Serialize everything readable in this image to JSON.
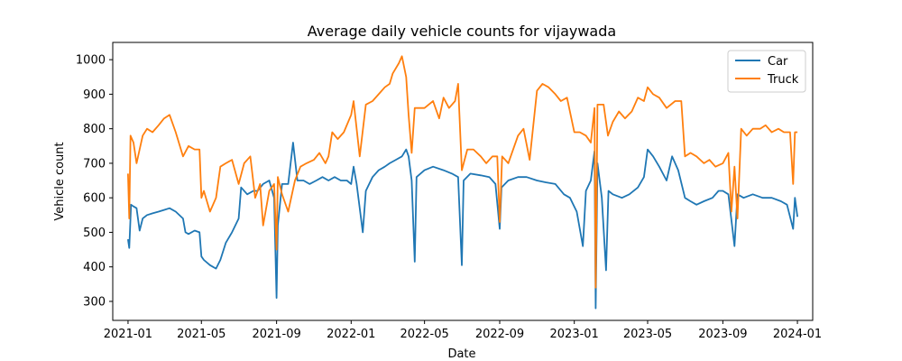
{
  "chart_data": {
    "type": "line",
    "title": "Average daily vehicle counts for vijaywada",
    "xlabel": "Date",
    "ylabel": "Vehicle count",
    "x_type": "date",
    "xlim": [
      "2020-12-07",
      "2024-01-26"
    ],
    "ylim": [
      245,
      1050
    ],
    "xticks": [
      "2021-01-01",
      "2021-05-01",
      "2021-09-01",
      "2022-01-01",
      "2022-05-01",
      "2022-09-01",
      "2023-01-01",
      "2023-05-01",
      "2023-09-01",
      "2024-01-01"
    ],
    "xtick_labels": [
      "2021-01",
      "2021-05",
      "2021-09",
      "2022-01",
      "2022-05",
      "2022-09",
      "2023-01",
      "2023-05",
      "2023-09",
      "2024-01"
    ],
    "yticks": [
      300,
      400,
      500,
      600,
      700,
      800,
      900,
      1000
    ],
    "grid": false,
    "legend_position": "top-right",
    "series": [
      {
        "name": "Car",
        "color": "#1f77b4",
        "points": [
          [
            "2021-01-01",
            480
          ],
          [
            "2021-01-03",
            455
          ],
          [
            "2021-01-06",
            580
          ],
          [
            "2021-01-10",
            575
          ],
          [
            "2021-01-15",
            570
          ],
          [
            "2021-01-20",
            505
          ],
          [
            "2021-01-25",
            540
          ],
          [
            "2021-02-01",
            550
          ],
          [
            "2021-02-10",
            555
          ],
          [
            "2021-02-20",
            560
          ],
          [
            "2021-03-01",
            565
          ],
          [
            "2021-03-10",
            570
          ],
          [
            "2021-03-20",
            560
          ],
          [
            "2021-04-01",
            540
          ],
          [
            "2021-04-05",
            500
          ],
          [
            "2021-04-10",
            495
          ],
          [
            "2021-04-20",
            505
          ],
          [
            "2021-04-28",
            500
          ],
          [
            "2021-05-01",
            430
          ],
          [
            "2021-05-05",
            420
          ],
          [
            "2021-05-15",
            405
          ],
          [
            "2021-05-20",
            400
          ],
          [
            "2021-05-25",
            395
          ],
          [
            "2021-06-01",
            420
          ],
          [
            "2021-06-10",
            470
          ],
          [
            "2021-06-20",
            500
          ],
          [
            "2021-07-01",
            540
          ],
          [
            "2021-07-05",
            630
          ],
          [
            "2021-07-15",
            610
          ],
          [
            "2021-07-25",
            620
          ],
          [
            "2021-08-01",
            620
          ],
          [
            "2021-08-10",
            640
          ],
          [
            "2021-08-20",
            650
          ],
          [
            "2021-08-28",
            600
          ],
          [
            "2021-09-01",
            310
          ],
          [
            "2021-09-03",
            520
          ],
          [
            "2021-09-10",
            640
          ],
          [
            "2021-09-20",
            640
          ],
          [
            "2021-09-28",
            760
          ],
          [
            "2021-10-05",
            650
          ],
          [
            "2021-10-15",
            650
          ],
          [
            "2021-10-25",
            640
          ],
          [
            "2021-11-05",
            650
          ],
          [
            "2021-11-15",
            660
          ],
          [
            "2021-11-25",
            650
          ],
          [
            "2021-12-05",
            660
          ],
          [
            "2021-12-15",
            650
          ],
          [
            "2021-12-25",
            650
          ],
          [
            "2022-01-01",
            640
          ],
          [
            "2022-01-05",
            690
          ],
          [
            "2022-01-10",
            640
          ],
          [
            "2022-01-20",
            500
          ],
          [
            "2022-01-25",
            620
          ],
          [
            "2022-02-05",
            660
          ],
          [
            "2022-02-15",
            680
          ],
          [
            "2022-02-25",
            690
          ],
          [
            "2022-03-05",
            700
          ],
          [
            "2022-03-15",
            710
          ],
          [
            "2022-03-25",
            720
          ],
          [
            "2022-04-01",
            740
          ],
          [
            "2022-04-05",
            720
          ],
          [
            "2022-04-10",
            650
          ],
          [
            "2022-04-15",
            415
          ],
          [
            "2022-04-18",
            660
          ],
          [
            "2022-05-01",
            680
          ],
          [
            "2022-05-15",
            690
          ],
          [
            "2022-06-01",
            680
          ],
          [
            "2022-06-15",
            670
          ],
          [
            "2022-06-25",
            660
          ],
          [
            "2022-07-01",
            405
          ],
          [
            "2022-07-04",
            650
          ],
          [
            "2022-07-15",
            670
          ],
          [
            "2022-08-01",
            665
          ],
          [
            "2022-08-15",
            660
          ],
          [
            "2022-08-25",
            640
          ],
          [
            "2022-09-01",
            510
          ],
          [
            "2022-09-04",
            630
          ],
          [
            "2022-09-15",
            650
          ],
          [
            "2022-10-01",
            660
          ],
          [
            "2022-10-15",
            660
          ],
          [
            "2022-11-01",
            650
          ],
          [
            "2022-11-15",
            645
          ],
          [
            "2022-12-01",
            640
          ],
          [
            "2022-12-15",
            610
          ],
          [
            "2022-12-25",
            600
          ],
          [
            "2023-01-05",
            560
          ],
          [
            "2023-01-15",
            460
          ],
          [
            "2023-01-20",
            620
          ],
          [
            "2023-01-28",
            650
          ],
          [
            "2023-02-03",
            735
          ],
          [
            "2023-02-05",
            280
          ],
          [
            "2023-02-08",
            700
          ],
          [
            "2023-02-15",
            600
          ],
          [
            "2023-02-22",
            390
          ],
          [
            "2023-02-26",
            620
          ],
          [
            "2023-03-05",
            610
          ],
          [
            "2023-03-20",
            600
          ],
          [
            "2023-04-01",
            610
          ],
          [
            "2023-04-15",
            630
          ],
          [
            "2023-04-25",
            660
          ],
          [
            "2023-05-01",
            740
          ],
          [
            "2023-05-10",
            720
          ],
          [
            "2023-05-20",
            690
          ],
          [
            "2023-06-01",
            650
          ],
          [
            "2023-06-10",
            720
          ],
          [
            "2023-06-20",
            680
          ],
          [
            "2023-07-01",
            600
          ],
          [
            "2023-07-10",
            590
          ],
          [
            "2023-07-20",
            580
          ],
          [
            "2023-08-01",
            590
          ],
          [
            "2023-08-15",
            600
          ],
          [
            "2023-08-25",
            620
          ],
          [
            "2023-09-01",
            620
          ],
          [
            "2023-09-10",
            610
          ],
          [
            "2023-09-20",
            460
          ],
          [
            "2023-09-25",
            610
          ],
          [
            "2023-10-05",
            600
          ],
          [
            "2023-10-20",
            610
          ],
          [
            "2023-11-05",
            600
          ],
          [
            "2023-11-20",
            600
          ],
          [
            "2023-12-05",
            590
          ],
          [
            "2023-12-15",
            580
          ],
          [
            "2023-12-25",
            510
          ],
          [
            "2023-12-28",
            600
          ],
          [
            "2024-01-01",
            545
          ]
        ]
      },
      {
        "name": "Truck",
        "color": "#ff7f0e",
        "points": [
          [
            "2021-01-01",
            670
          ],
          [
            "2021-01-03",
            540
          ],
          [
            "2021-01-05",
            780
          ],
          [
            "2021-01-10",
            760
          ],
          [
            "2021-01-15",
            700
          ],
          [
            "2021-01-20",
            740
          ],
          [
            "2021-01-25",
            780
          ],
          [
            "2021-02-01",
            800
          ],
          [
            "2021-02-10",
            790
          ],
          [
            "2021-02-20",
            810
          ],
          [
            "2021-03-01",
            830
          ],
          [
            "2021-03-10",
            840
          ],
          [
            "2021-03-20",
            790
          ],
          [
            "2021-04-01",
            720
          ],
          [
            "2021-04-10",
            750
          ],
          [
            "2021-04-20",
            740
          ],
          [
            "2021-04-28",
            740
          ],
          [
            "2021-05-01",
            600
          ],
          [
            "2021-05-05",
            620
          ],
          [
            "2021-05-15",
            560
          ],
          [
            "2021-05-25",
            600
          ],
          [
            "2021-06-01",
            690
          ],
          [
            "2021-06-10",
            700
          ],
          [
            "2021-06-20",
            710
          ],
          [
            "2021-07-01",
            640
          ],
          [
            "2021-07-10",
            700
          ],
          [
            "2021-07-20",
            720
          ],
          [
            "2021-07-28",
            600
          ],
          [
            "2021-08-05",
            640
          ],
          [
            "2021-08-10",
            520
          ],
          [
            "2021-08-20",
            620
          ],
          [
            "2021-08-28",
            640
          ],
          [
            "2021-09-01",
            450
          ],
          [
            "2021-09-03",
            660
          ],
          [
            "2021-09-10",
            610
          ],
          [
            "2021-09-20",
            560
          ],
          [
            "2021-10-01",
            650
          ],
          [
            "2021-10-10",
            690
          ],
          [
            "2021-10-20",
            700
          ],
          [
            "2021-11-01",
            710
          ],
          [
            "2021-11-10",
            730
          ],
          [
            "2021-11-20",
            700
          ],
          [
            "2021-11-25",
            720
          ],
          [
            "2021-12-01",
            790
          ],
          [
            "2021-12-10",
            770
          ],
          [
            "2021-12-20",
            790
          ],
          [
            "2022-01-01",
            840
          ],
          [
            "2022-01-05",
            880
          ],
          [
            "2022-01-15",
            720
          ],
          [
            "2022-01-25",
            870
          ],
          [
            "2022-02-05",
            880
          ],
          [
            "2022-02-15",
            900
          ],
          [
            "2022-02-25",
            920
          ],
          [
            "2022-03-05",
            930
          ],
          [
            "2022-03-10",
            960
          ],
          [
            "2022-03-20",
            990
          ],
          [
            "2022-03-25",
            1010
          ],
          [
            "2022-04-01",
            950
          ],
          [
            "2022-04-05",
            840
          ],
          [
            "2022-04-10",
            730
          ],
          [
            "2022-04-15",
            860
          ],
          [
            "2022-04-25",
            860
          ],
          [
            "2022-05-01",
            860
          ],
          [
            "2022-05-15",
            880
          ],
          [
            "2022-05-25",
            830
          ],
          [
            "2022-06-01",
            890
          ],
          [
            "2022-06-10",
            860
          ],
          [
            "2022-06-20",
            880
          ],
          [
            "2022-06-25",
            930
          ],
          [
            "2022-07-01",
            680
          ],
          [
            "2022-07-10",
            740
          ],
          [
            "2022-07-20",
            740
          ],
          [
            "2022-08-01",
            720
          ],
          [
            "2022-08-10",
            700
          ],
          [
            "2022-08-20",
            720
          ],
          [
            "2022-08-28",
            720
          ],
          [
            "2022-09-01",
            530
          ],
          [
            "2022-09-05",
            720
          ],
          [
            "2022-09-15",
            700
          ],
          [
            "2022-10-01",
            780
          ],
          [
            "2022-10-10",
            800
          ],
          [
            "2022-10-20",
            710
          ],
          [
            "2022-11-01",
            910
          ],
          [
            "2022-11-10",
            930
          ],
          [
            "2022-11-20",
            920
          ],
          [
            "2022-12-01",
            900
          ],
          [
            "2022-12-10",
            880
          ],
          [
            "2022-12-20",
            890
          ],
          [
            "2023-01-01",
            790
          ],
          [
            "2023-01-10",
            790
          ],
          [
            "2023-01-20",
            780
          ],
          [
            "2023-01-28",
            760
          ],
          [
            "2023-02-03",
            860
          ],
          [
            "2023-02-05",
            340
          ],
          [
            "2023-02-08",
            870
          ],
          [
            "2023-02-18",
            870
          ],
          [
            "2023-02-25",
            780
          ],
          [
            "2023-03-05",
            820
          ],
          [
            "2023-03-15",
            850
          ],
          [
            "2023-03-25",
            830
          ],
          [
            "2023-04-05",
            850
          ],
          [
            "2023-04-15",
            890
          ],
          [
            "2023-04-25",
            880
          ],
          [
            "2023-05-01",
            920
          ],
          [
            "2023-05-10",
            900
          ],
          [
            "2023-05-20",
            890
          ],
          [
            "2023-06-01",
            860
          ],
          [
            "2023-06-15",
            880
          ],
          [
            "2023-06-25",
            880
          ],
          [
            "2023-07-01",
            720
          ],
          [
            "2023-07-10",
            730
          ],
          [
            "2023-07-20",
            720
          ],
          [
            "2023-08-01",
            700
          ],
          [
            "2023-08-10",
            710
          ],
          [
            "2023-08-20",
            690
          ],
          [
            "2023-09-01",
            700
          ],
          [
            "2023-09-10",
            730
          ],
          [
            "2023-09-15",
            560
          ],
          [
            "2023-09-20",
            690
          ],
          [
            "2023-09-25",
            540
          ],
          [
            "2023-10-01",
            800
          ],
          [
            "2023-10-10",
            780
          ],
          [
            "2023-10-20",
            800
          ],
          [
            "2023-11-01",
            800
          ],
          [
            "2023-11-10",
            810
          ],
          [
            "2023-11-20",
            790
          ],
          [
            "2023-12-01",
            800
          ],
          [
            "2023-12-10",
            790
          ],
          [
            "2023-12-20",
            790
          ],
          [
            "2023-12-25",
            640
          ],
          [
            "2023-12-28",
            790
          ],
          [
            "2024-01-01",
            790
          ]
        ]
      }
    ]
  }
}
